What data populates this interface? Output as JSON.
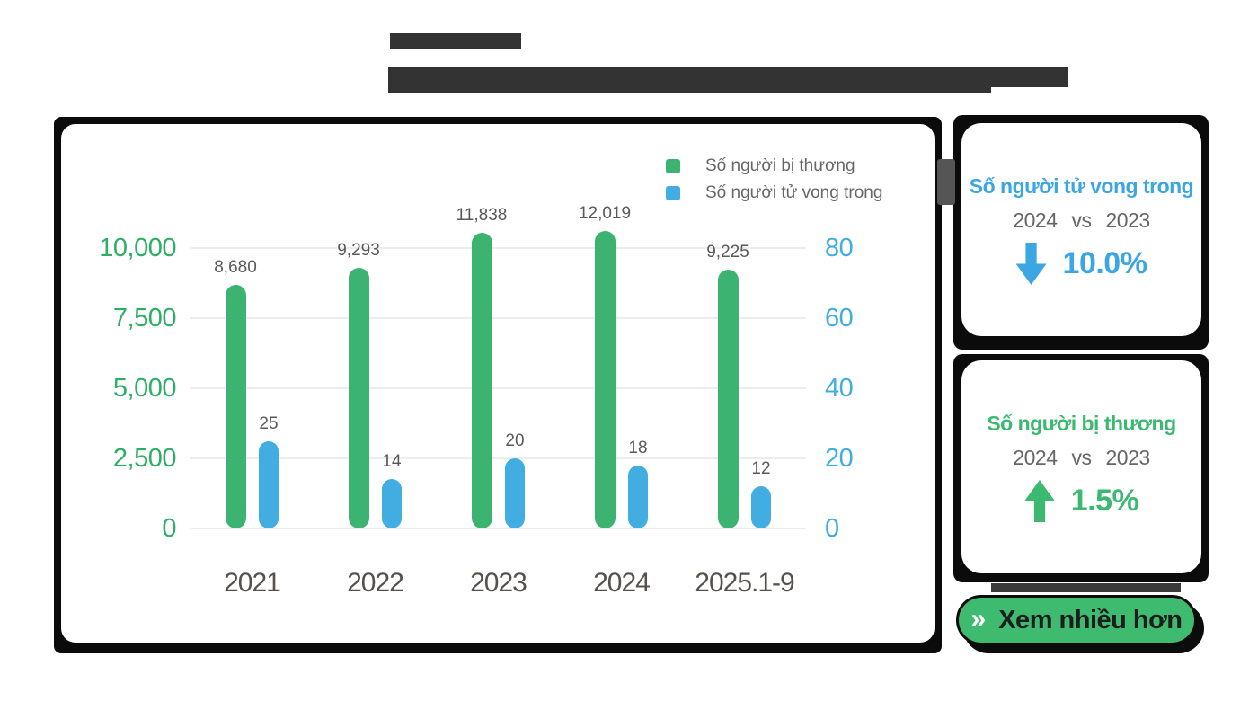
{
  "decor": {
    "redacted_block_color": "#333333",
    "frame_color": "#0b0b0b",
    "connector_color": "#555555"
  },
  "chart_data": {
    "type": "bar",
    "categories": [
      "2021",
      "2022",
      "2023",
      "2024",
      "2025.1-9"
    ],
    "series": [
      {
        "name": "Số người bị thương",
        "axis": "left",
        "color": "#3cb371",
        "values": [
          8680,
          9293,
          11838,
          12019,
          9225
        ],
        "data_labels": [
          "8,680",
          "9,293",
          "11,838",
          "12,019",
          "9,225"
        ]
      },
      {
        "name": "Số người tử vong trong",
        "axis": "right",
        "color": "#41ade0",
        "values": [
          25,
          14,
          20,
          18,
          12
        ],
        "data_labels": [
          "25",
          "14",
          "20",
          "18",
          "12"
        ]
      }
    ],
    "left_axis": {
      "tick_labels": [
        "10,000",
        "7,500",
        "5,000",
        "2,500",
        "0"
      ],
      "range": [
        0,
        10000
      ],
      "color": "#2dae66"
    },
    "right_axis": {
      "tick_labels": [
        "80",
        "60",
        "40",
        "20",
        "0"
      ],
      "range": [
        0,
        80
      ],
      "color": "#41ade0"
    },
    "grid": true,
    "legend_position": "top-right"
  },
  "cards": [
    {
      "title": "Số người tử vong trong",
      "compare_left": "2024",
      "compare_vs": "vs",
      "compare_right": "2023",
      "direction": "down",
      "percent": "10.0%",
      "accent": "#3ba6e2"
    },
    {
      "title": "Số người bị thương",
      "compare_left": "2024",
      "compare_vs": "vs",
      "compare_right": "2023",
      "direction": "up",
      "percent": "1.5%",
      "accent": "#3cb971"
    }
  ],
  "more_button": {
    "icon": "»",
    "label": "Xem nhiều hơn",
    "bg": "#3ebb6f"
  }
}
